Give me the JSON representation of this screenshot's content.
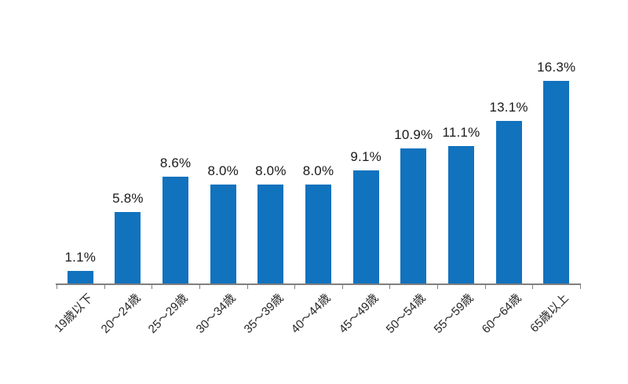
{
  "chart_data": {
    "type": "bar",
    "categories": [
      "19歳以下",
      "20〜24歳",
      "25〜29歳",
      "30〜34歳",
      "35〜39歳",
      "40〜44歳",
      "45〜49歳",
      "50〜54歳",
      "55〜59歳",
      "60〜64歳",
      "65歳以上"
    ],
    "values": [
      1.1,
      5.8,
      8.6,
      8.0,
      8.0,
      8.0,
      9.1,
      10.9,
      11.1,
      13.1,
      16.3
    ],
    "data_labels": [
      "1.1%",
      "5.8%",
      "8.6%",
      "8.0%",
      "8.0%",
      "8.0%",
      "9.1%",
      "10.9%",
      "11.1%",
      "13.1%",
      "16.3%"
    ],
    "title": "",
    "xlabel": "",
    "ylabel": "",
    "ylim": [
      0,
      16.3
    ],
    "grid": false,
    "legend": false,
    "y_axis_visible": false,
    "x_label_rotation_deg": -45,
    "colors": {
      "bar": "#1172BD",
      "axis": "#7F7F7F",
      "value_label_text": "#1A1A1A",
      "tick_label_text": "#262626",
      "background": "#FFFFFF"
    }
  }
}
